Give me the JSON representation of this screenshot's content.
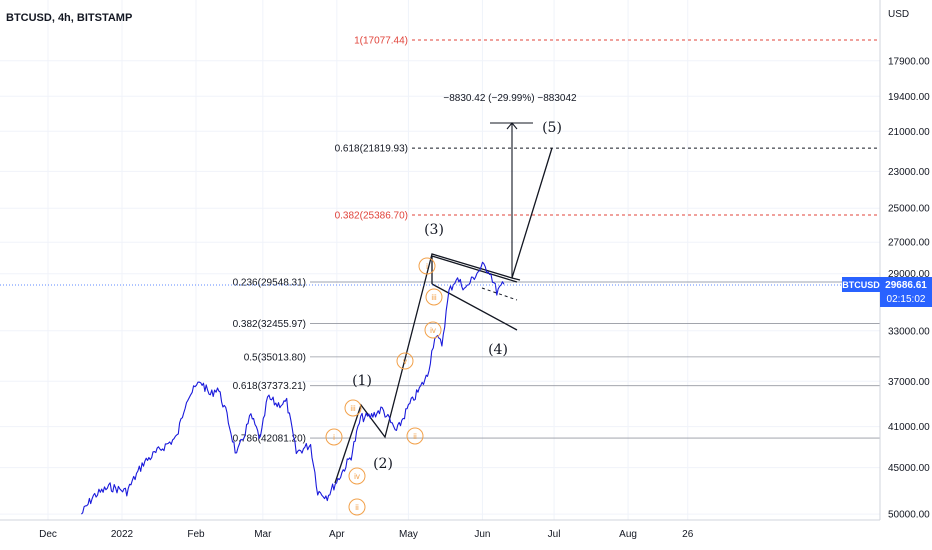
{
  "header": {
    "title": "BTCUSD, 4h, BITSTAMP"
  },
  "price_axis": {
    "currency": "USD"
  },
  "price_badge": {
    "symbol": "BTCUSD",
    "price": "29686.61",
    "countdown": "02:15:02"
  },
  "measure_label": "−8830.42 (−29.99%) −883042",
  "colors": {
    "price_line": "#1a1adb",
    "accent": "#2962ff",
    "fib_red": "#e0433a",
    "wave_sub": "#f2a14a"
  },
  "chart_data": {
    "type": "line",
    "title": "BTCUSD, 4h, BITSTAMP",
    "y_scale": "log, inverted",
    "y_ticks": [
      "50000.00",
      "45000.00",
      "41000.00",
      "37000.00",
      "33000.00",
      "29000.00",
      "27000.00",
      "25000.00",
      "23000.00",
      "21000.00",
      "19400.00",
      "17900.00"
    ],
    "x_ticks": [
      "Dec",
      "2022",
      "Feb",
      "Mar",
      "Apr",
      "May",
      "Jun",
      "Jul",
      "Aug",
      "26"
    ],
    "series": [
      {
        "x": [
          "2021-12-15",
          "2021-12-20",
          "2021-12-27",
          "2022-01-03",
          "2022-01-10",
          "2022-01-18",
          "2022-01-24",
          "2022-01-28",
          "2022-02-03",
          "2022-02-07",
          "2022-02-10",
          "2022-02-14",
          "2022-02-18",
          "2022-02-24",
          "2022-02-28",
          "2022-03-03",
          "2022-03-07",
          "2022-03-11",
          "2022-03-15",
          "2022-03-21",
          "2022-03-24",
          "2022-03-28",
          "2022-04-02",
          "2022-04-07",
          "2022-04-11",
          "2022-04-15",
          "2022-04-20",
          "2022-04-26",
          "2022-05-01",
          "2022-05-05",
          "2022-05-09",
          "2022-05-12",
          "2022-05-15",
          "2022-05-18",
          "2022-05-21",
          "2022-05-25",
          "2022-05-28",
          "2022-06-01",
          "2022-06-04",
          "2022-06-07",
          "2022-06-10"
        ],
        "values": [
          50000,
          48000,
          47000,
          47500,
          44500,
          43000,
          42000,
          38500,
          37000,
          38200,
          37500,
          40000,
          43800,
          40000,
          42200,
          38400,
          39000,
          38800,
          43500,
          42700,
          47500,
          48000,
          46000,
          43800,
          40200,
          40100,
          39400,
          41500,
          39200,
          37900,
          36500,
          33400,
          34000,
          30200,
          29300,
          30000,
          29300,
          28500,
          28800,
          30200,
          29700
        ]
      }
    ],
    "annotations": {
      "fib_levels": [
        {
          "label": "1(17077.44)",
          "value": 17077.44,
          "color": "red"
        },
        {
          "label": "0.618(21819.93)",
          "value": 21819.93,
          "color": "black"
        },
        {
          "label": "0.382(25386.70)",
          "value": 25386.7,
          "color": "red"
        },
        {
          "label": "0.236(29548.31)",
          "value": 29548.31,
          "color": "black"
        },
        {
          "label": "0.382(32455.97)",
          "value": 32455.97,
          "color": "black"
        },
        {
          "label": "0.5(35013.80)",
          "value": 35013.8,
          "color": "black"
        },
        {
          "label": "0.618(37373.21)",
          "value": 37373.21,
          "color": "black"
        },
        {
          "label": "0.786(42081.20)",
          "value": 42081.2,
          "color": "black"
        }
      ],
      "waves": [
        "(1)",
        "(2)",
        "(3)",
        "(4)",
        "(5)"
      ],
      "sub_waves": [
        "i",
        "ii",
        "iii",
        "iv",
        "v",
        "i",
        "ii",
        "iii",
        "iv",
        "v"
      ]
    }
  }
}
